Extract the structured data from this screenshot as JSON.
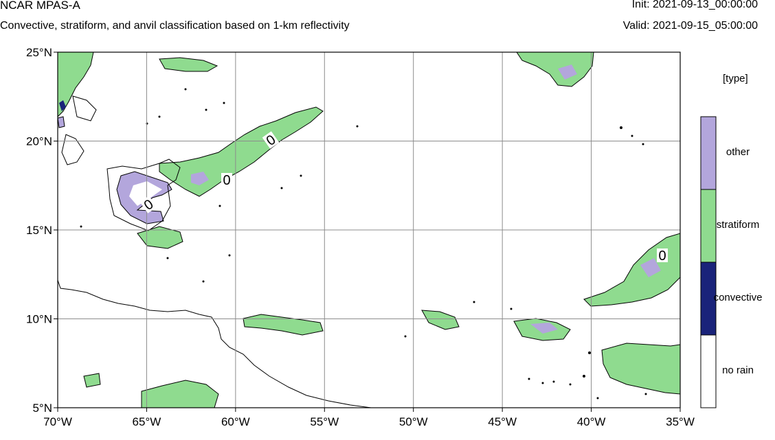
{
  "header": {
    "title": "NCAR MPAS-A",
    "subtitle": "Convective, stratiform, and anvil classification based on 1-km reflectivity",
    "init": "Init: 2021-09-13_00:00:00",
    "valid": "Valid: 2021-09-15_05:00:00"
  },
  "legend": {
    "title": "[type]",
    "placement": "right",
    "entries": [
      {
        "label": "other",
        "color": "#b3a6dc"
      },
      {
        "label": "stratiform",
        "color": "#8fdb8f"
      },
      {
        "label": "convective",
        "color": "#1a237a"
      },
      {
        "label": "no rain",
        "color": "#ffffff"
      }
    ]
  },
  "map": {
    "lon_range": [
      -70,
      -35
    ],
    "lat_range": [
      5,
      25
    ],
    "grid": true,
    "x_ticks": [
      "70°W",
      "65°W",
      "60°W",
      "55°W",
      "50°W",
      "45°W",
      "40°W",
      "35°W"
    ],
    "y_ticks": [
      "25°N",
      "20°N",
      "15°N",
      "10°N",
      "5°N"
    ],
    "contour_labels": [
      "0",
      "0",
      "0",
      "0"
    ]
  },
  "colors": {
    "other": "#b3a6dc",
    "stratiform": "#8fdb8f",
    "convective": "#1a237a",
    "grid": "#8c8c8c"
  }
}
